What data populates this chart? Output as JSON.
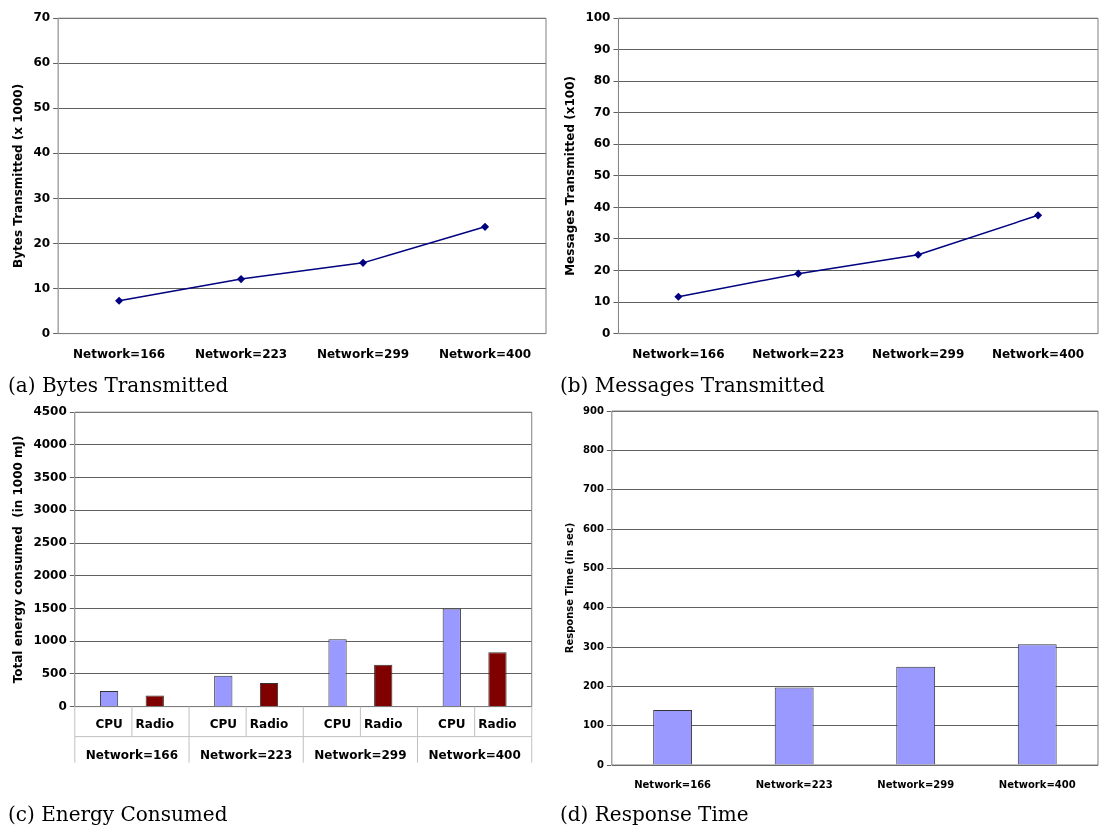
{
  "chart_data": [
    {
      "type": "line",
      "title": "(a) Bytes Transmitted",
      "ylabel": "Bytes Transmitted (x 1000)",
      "categories": [
        "Network=166",
        "Network=223",
        "Network=299",
        "Network=400"
      ],
      "series": [
        {
          "color": "#000080",
          "values": [
            7.3,
            12.1,
            15.7,
            23.7
          ]
        }
      ],
      "ylim": [
        0,
        70
      ],
      "yticks": [
        0,
        10,
        20,
        30,
        40,
        50,
        60,
        70
      ],
      "grid": "y",
      "marker": "diamond",
      "line_style": "solid"
    },
    {
      "type": "line",
      "title": "(b) Messages Transmitted",
      "ylabel": "Messages Transmitted (x100)",
      "categories": [
        "Network=166",
        "Network=223",
        "Network=299",
        "Network=400"
      ],
      "series": [
        {
          "color": "#000080",
          "values": [
            11.7,
            19,
            25,
            37.5
          ]
        }
      ],
      "ylim": [
        0,
        100
      ],
      "yticks": [
        0,
        10,
        20,
        30,
        40,
        50,
        60,
        70,
        80,
        90,
        100
      ],
      "grid": "y",
      "marker": "diamond",
      "line_style": "solid"
    },
    {
      "type": "bar",
      "title": "(c) Energy Consumed",
      "ylabel": "Total energy consumed  (in 1000 mJ)",
      "categories": [
        "Network=166",
        "Network=223",
        "Network=299",
        "Network=400"
      ],
      "series": [
        {
          "name": "CPU",
          "color": "#9999ff",
          "values": [
            240,
            470,
            1030,
            1500
          ]
        },
        {
          "name": "Radio",
          "color": "#800000",
          "values": [
            170,
            360,
            640,
            830
          ]
        }
      ],
      "ylim": [
        0,
        4500
      ],
      "yticks": [
        0,
        500,
        1000,
        1500,
        2000,
        2500,
        3000,
        3500,
        4000,
        4500
      ],
      "grid": "y"
    },
    {
      "type": "bar",
      "title": "(d) Response Time",
      "ylabel": "Response Time (in sec)",
      "categories": [
        "Network=166",
        "Network=223",
        "Network=299",
        "Network=400"
      ],
      "series": [
        {
          "color": "#9999ff",
          "values": [
            140,
            197,
            250,
            307
          ]
        }
      ],
      "ylim": [
        0,
        900
      ],
      "yticks": [
        0,
        100,
        200,
        300,
        400,
        500,
        600,
        700,
        800,
        900
      ],
      "grid": "y"
    }
  ]
}
